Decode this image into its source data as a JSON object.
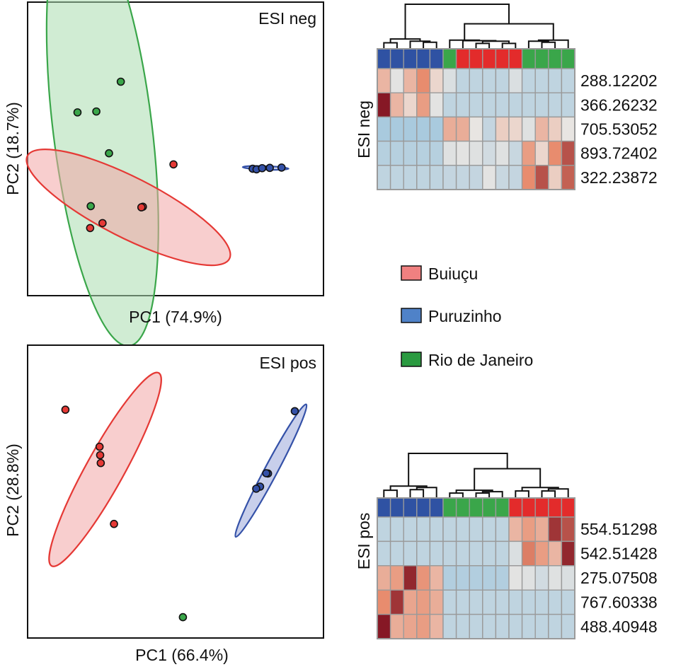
{
  "colors": {
    "buiucu": "#e53935",
    "buiucu_fill": "#f2a5a5",
    "puruzinho": "#3451a8",
    "puruzinho_fill": "#9aa8da",
    "rio": "#3aa64a",
    "rio_fill": "#a9dcaf",
    "heat_low": "#92c0dd",
    "heat_mid": "#ece7e2",
    "heat_high": "#7a0a1c",
    "cell_border": "#9a9a9a"
  },
  "legend": {
    "items": [
      {
        "label": "Buiuçu",
        "group": "buiucu"
      },
      {
        "label": "Puruzinho",
        "group": "puruzinho"
      },
      {
        "label": "Rio de Janeiro",
        "group": "rio"
      }
    ]
  },
  "chart_data": [
    {
      "type": "scatter",
      "title": "ESI neg",
      "xlabel": "PC1 (74.9%)",
      "ylabel": "PC2 (18.7%)",
      "xlim": [
        0,
        100
      ],
      "ylim": [
        0,
        100
      ],
      "grid": false,
      "series": [
        {
          "name": "Rio de Janeiro",
          "group": "rio",
          "points": [
            [
              31.4,
              73.0
            ],
            [
              16.7,
              62.5
            ],
            [
              23.1,
              62.8
            ],
            [
              27.4,
              48.5
            ],
            [
              21.2,
              30.4
            ]
          ],
          "ellipse": {
            "cx": 25.2,
            "cy": 57.0,
            "rx": 16.8,
            "ry": 75.0,
            "angle": 7
          }
        },
        {
          "name": "Buiuçu",
          "group": "buiucu",
          "points": [
            [
              49.3,
              44.7
            ],
            [
              38.9,
              30.2
            ],
            [
              38.4,
              30.0
            ],
            [
              25.2,
              24.6
            ],
            [
              21.0,
              22.9
            ]
          ],
          "ellipse": {
            "cx": 34.0,
            "cy": 30.0,
            "rx": 38.5,
            "ry": 10.3,
            "angle": -27
          }
        },
        {
          "name": "Puruzinho",
          "group": "puruzinho",
          "points": [
            [
              76.2,
              43.2
            ],
            [
              77.5,
              43.0
            ],
            [
              79.4,
              43.4
            ],
            [
              82.0,
              43.5
            ],
            [
              86.0,
              43.6
            ]
          ],
          "ellipse": {
            "cx": 80.6,
            "cy": 43.5,
            "rx": 7.8,
            "ry": 0.6,
            "angle": -2
          }
        }
      ]
    },
    {
      "type": "heatmap",
      "title": "ESI neg",
      "row_labels": [
        "288.12202",
        "366.26232",
        "705.53052",
        "893.72402",
        "322.23872"
      ],
      "column_groups": [
        "puruzinho",
        "puruzinho",
        "puruzinho",
        "puruzinho",
        "puruzinho",
        "rio",
        "buiucu",
        "buiucu",
        "buiucu",
        "buiucu",
        "buiucu",
        "rio",
        "rio",
        "rio",
        "rio"
      ],
      "scale": [
        -2,
        2
      ],
      "values": [
        [
          0.6,
          -0.2,
          0.6,
          1.1,
          0.2,
          -0.4,
          -1.0,
          -1.0,
          -1.0,
          -1.0,
          -0.4,
          -1.0,
          -1.0,
          -1.0,
          -1.0
        ],
        [
          1.9,
          0.6,
          0.2,
          0.9,
          -0.2,
          -1.0,
          -1.0,
          -1.0,
          -1.0,
          -1.0,
          -1.0,
          -1.0,
          -1.0,
          -1.0,
          -1.0
        ],
        [
          -1.5,
          -1.5,
          -1.5,
          -1.5,
          -1.5,
          0.7,
          0.7,
          -0.1,
          -0.9,
          0.3,
          0.2,
          -0.3,
          0.6,
          0.3,
          -0.1
        ],
        [
          -1.2,
          -1.2,
          -1.2,
          -1.2,
          -1.2,
          -0.3,
          -0.2,
          -0.3,
          -0.6,
          -0.3,
          -0.8,
          0.9,
          0.2,
          1.1,
          1.5
        ],
        [
          -1.0,
          -1.0,
          -1.0,
          -1.0,
          -1.0,
          -0.9,
          -0.9,
          -0.9,
          -0.2,
          -0.8,
          -0.9,
          1.1,
          1.5,
          0.3,
          1.4
        ]
      ],
      "dendrogram": {
        "merges": [
          [
            0,
            1,
            0.55
          ],
          [
            3,
            4,
            0.6
          ],
          [
            2,
            16,
            0.7
          ],
          [
            15,
            17,
            0.9
          ],
          [
            7,
            8,
            0.5
          ],
          [
            9,
            10,
            0.5
          ],
          [
            19,
            20,
            0.7
          ],
          [
            6,
            21,
            0.75
          ],
          [
            5,
            22,
            0.8
          ],
          [
            12,
            13,
            0.6
          ],
          [
            11,
            24,
            0.7
          ],
          [
            14,
            25,
            0.8
          ],
          [
            23,
            26,
            2.3
          ],
          [
            18,
            27,
            4.1
          ]
        ],
        "max_height": 4.1
      }
    },
    {
      "type": "scatter",
      "title": "ESI pos",
      "xlabel": "PC1 (66.4%)",
      "ylabel": "PC2 (28.8%)",
      "xlim": [
        0,
        100
      ],
      "ylim": [
        0,
        100
      ],
      "grid": false,
      "series": [
        {
          "name": "Buiuçu",
          "group": "buiucu",
          "points": [
            [
              12.6,
              78.1
            ],
            [
              24.2,
              65.4
            ],
            [
              24.4,
              62.5
            ],
            [
              24.6,
              59.8
            ],
            [
              29.1,
              38.9
            ]
          ],
          "ellipse": {
            "cx": 26.1,
            "cy": 57.6,
            "rx": 37.5,
            "ry": 6.5,
            "angle": 61
          }
        },
        {
          "name": "Puruzinho",
          "group": "puruzinho",
          "points": [
            [
              90.5,
              77.6
            ],
            [
              81.4,
              56.2
            ],
            [
              80.8,
              56.3
            ],
            [
              78.7,
              51.7
            ],
            [
              77.4,
              51.0
            ]
          ],
          "ellipse": {
            "cx": 82.4,
            "cy": 57.2,
            "rx": 25.5,
            "ry": 2.2,
            "angle": 62
          }
        },
        {
          "name": "Rio de Janeiro",
          "group": "rio",
          "points": [
            [
              52.5,
              6.9
            ]
          ],
          "ellipse": null
        }
      ]
    },
    {
      "type": "heatmap",
      "title": "ESI pos",
      "row_labels": [
        "554.51298",
        "542.51428",
        "275.07508",
        "767.60338",
        "488.40948"
      ],
      "column_groups": [
        "puruzinho",
        "puruzinho",
        "puruzinho",
        "puruzinho",
        "puruzinho",
        "rio",
        "rio",
        "rio",
        "rio",
        "rio",
        "buiucu",
        "buiucu",
        "buiucu",
        "buiucu",
        "buiucu"
      ],
      "scale": [
        -2,
        2
      ],
      "values": [
        [
          -1.0,
          -1.0,
          -1.0,
          -1.0,
          -1.0,
          -1.0,
          -1.0,
          -1.0,
          -1.0,
          -1.0,
          0.6,
          0.9,
          0.7,
          1.7,
          1.5
        ],
        [
          -1.0,
          -1.0,
          -1.0,
          -1.0,
          -1.0,
          -1.0,
          -1.0,
          -1.0,
          -1.0,
          -1.0,
          -0.4,
          1.2,
          0.9,
          0.6,
          1.8
        ],
        [
          0.7,
          0.9,
          1.8,
          1.0,
          0.6,
          -1.3,
          -1.3,
          -1.3,
          -1.3,
          -1.3,
          -0.2,
          -0.3,
          -0.6,
          -0.3,
          -0.4
        ],
        [
          1.1,
          1.7,
          0.8,
          0.9,
          0.7,
          -1.0,
          -1.0,
          -1.0,
          -1.0,
          -1.0,
          -1.0,
          -1.0,
          -1.0,
          -1.0,
          -1.0
        ],
        [
          1.9,
          0.7,
          0.8,
          0.9,
          0.6,
          -1.0,
          -1.0,
          -1.0,
          -1.0,
          -1.0,
          -1.0,
          -1.0,
          -1.0,
          -1.0,
          -1.0
        ]
      ],
      "dendrogram": {
        "merges": [
          [
            0,
            1,
            0.55
          ],
          [
            2,
            3,
            0.6
          ],
          [
            4,
            16,
            0.75
          ],
          [
            15,
            17,
            0.85
          ],
          [
            5,
            6,
            0.35
          ],
          [
            7,
            8,
            0.35
          ],
          [
            9,
            20,
            0.45
          ],
          [
            19,
            21,
            0.55
          ],
          [
            10,
            11,
            0.5
          ],
          [
            12,
            13,
            0.5
          ],
          [
            24,
            14,
            0.65
          ],
          [
            23,
            25,
            0.75
          ],
          [
            22,
            26,
            2.1
          ],
          [
            18,
            27,
            3.2
          ]
        ],
        "max_height": 3.2
      }
    }
  ]
}
